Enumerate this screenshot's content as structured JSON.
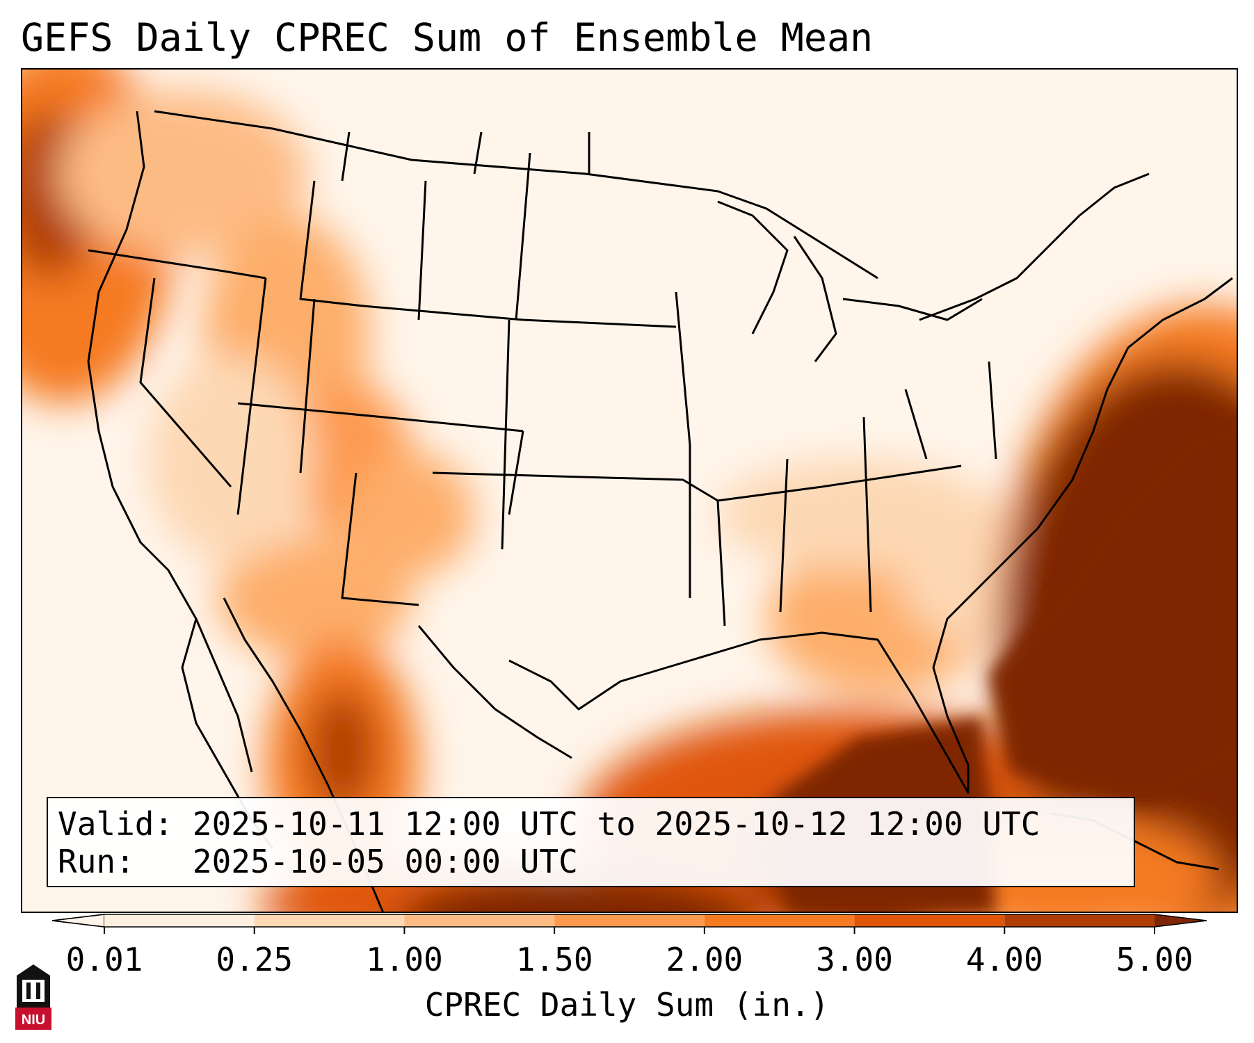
{
  "title": "GEFS Daily CPREC Sum of Ensemble Mean",
  "info": {
    "valid_label": "Valid:",
    "valid_value": "2025-10-11 12:00 UTC to 2025-10-12 12:00 UTC",
    "run_label": "Run:",
    "run_value": "2025-10-05 00:00 UTC"
  },
  "colorbar": {
    "label": "CPREC Daily Sum (in.)",
    "ticks": [
      "0.01",
      "0.25",
      "1.00",
      "1.50",
      "2.00",
      "3.00",
      "4.00",
      "5.00"
    ],
    "colors": [
      "#fef0e0",
      "#fdd8b4",
      "#fdbb84",
      "#fd9a4f",
      "#f57a22",
      "#e05608",
      "#b03d04",
      "#7f2704"
    ],
    "under_color": "#fff5eb",
    "over_color": "#7f2704"
  },
  "logo": {
    "text": "NIU",
    "color": "#c8102e"
  },
  "colors": {
    "ocean_heavy": "#7f2704",
    "outline": "#000000"
  }
}
